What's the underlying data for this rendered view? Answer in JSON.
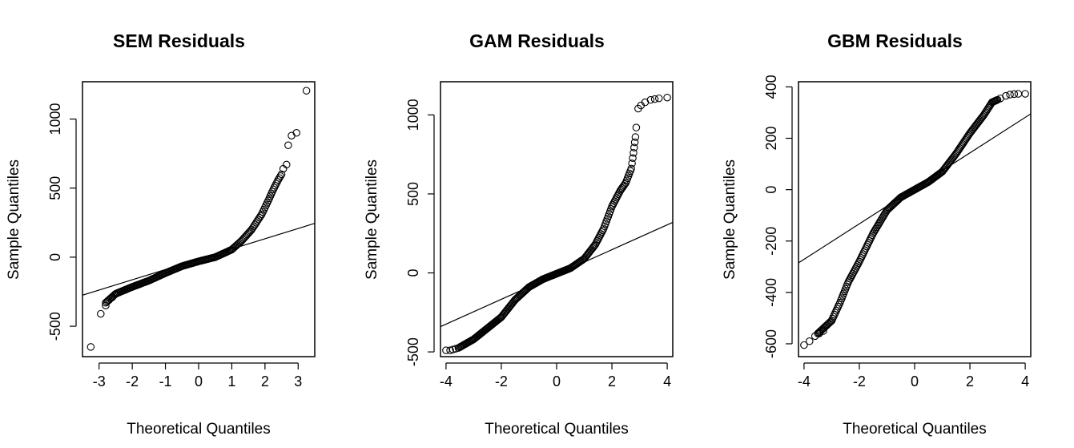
{
  "chart_data": [
    {
      "type": "scatter",
      "title": "SEM Residuals",
      "xlabel": "Theoretical Quantiles",
      "ylabel": "Sample Quantiles",
      "xlim": [
        -3.5,
        3.5
      ],
      "ylim": [
        -720,
        1270
      ],
      "xticks": [
        -3,
        -2,
        -1,
        0,
        1,
        2,
        3
      ],
      "yticks": [
        -500,
        0,
        500,
        1000
      ],
      "grid": false,
      "reference_line": [
        [
          -3.5,
          -275
        ],
        [
          3.5,
          245
        ]
      ],
      "curve": [
        [
          -2.8,
          -330
        ],
        [
          -2.5,
          -265
        ],
        [
          -2.0,
          -215
        ],
        [
          -1.5,
          -170
        ],
        [
          -1.0,
          -115
        ],
        [
          -0.5,
          -65
        ],
        [
          0.0,
          -30
        ],
        [
          0.5,
          0
        ],
        [
          1.0,
          55
        ],
        [
          1.3,
          120
        ],
        [
          1.6,
          200
        ],
        [
          1.9,
          310
        ],
        [
          2.1,
          410
        ],
        [
          2.25,
          490
        ],
        [
          2.4,
          560
        ],
        [
          2.5,
          600
        ]
      ],
      "points": [
        [
          -3.25,
          -650
        ],
        [
          -2.95,
          -410
        ],
        [
          -2.8,
          -350
        ],
        [
          -2.7,
          -310
        ],
        [
          -2.6,
          -290
        ],
        [
          -2.52,
          -270
        ],
        [
          2.55,
          640
        ],
        [
          2.65,
          670
        ],
        [
          2.7,
          810
        ],
        [
          2.8,
          880
        ],
        [
          2.95,
          900
        ],
        [
          3.25,
          1205
        ]
      ]
    },
    {
      "type": "scatter",
      "title": "GAM Residuals",
      "xlabel": "Theoretical Quantiles",
      "ylabel": "Sample Quantiles",
      "xlim": [
        -4.2,
        4.2
      ],
      "ylim": [
        -530,
        1210
      ],
      "xticks": [
        -4,
        -2,
        0,
        2,
        4
      ],
      "yticks": [
        -500,
        0,
        500,
        1000
      ],
      "grid": false,
      "reference_line": [
        [
          -4.2,
          -340
        ],
        [
          4.2,
          320
        ]
      ],
      "curve": [
        [
          -3.5,
          -470
        ],
        [
          -3.0,
          -420
        ],
        [
          -2.5,
          -350
        ],
        [
          -2.0,
          -280
        ],
        [
          -1.5,
          -170
        ],
        [
          -1.0,
          -90
        ],
        [
          -0.5,
          -40
        ],
        [
          0.0,
          -5
        ],
        [
          0.5,
          30
        ],
        [
          1.0,
          90
        ],
        [
          1.4,
          180
        ],
        [
          1.7,
          280
        ],
        [
          2.0,
          420
        ],
        [
          2.3,
          520
        ],
        [
          2.5,
          570
        ],
        [
          2.7,
          660
        ],
        [
          2.78,
          760
        ],
        [
          2.85,
          860
        ]
      ],
      "points": [
        [
          -4.0,
          -490
        ],
        [
          -3.85,
          -490
        ],
        [
          -3.75,
          -485
        ],
        [
          -3.65,
          -480
        ],
        [
          -3.55,
          -475
        ],
        [
          2.88,
          920
        ],
        [
          2.95,
          1040
        ],
        [
          3.05,
          1060
        ],
        [
          3.2,
          1080
        ],
        [
          3.4,
          1095
        ],
        [
          3.55,
          1100
        ],
        [
          3.7,
          1105
        ],
        [
          4.0,
          1110
        ]
      ]
    },
    {
      "type": "scatter",
      "title": "GBM Residuals",
      "xlabel": "Theoretical Quantiles",
      "ylabel": "Sample Quantiles",
      "xlim": [
        -4.2,
        4.2
      ],
      "ylim": [
        -650,
        420
      ],
      "xticks": [
        -4,
        -2,
        0,
        2,
        4
      ],
      "yticks": [
        -600,
        -400,
        -200,
        0,
        200,
        400
      ],
      "grid": false,
      "reference_line": [
        [
          -4.2,
          -285
        ],
        [
          4.2,
          295
        ]
      ],
      "curve": [
        [
          -3.5,
          -560
        ],
        [
          -3.0,
          -510
        ],
        [
          -2.7,
          -440
        ],
        [
          -2.4,
          -360
        ],
        [
          -2.0,
          -280
        ],
        [
          -1.5,
          -170
        ],
        [
          -1.0,
          -80
        ],
        [
          -0.5,
          -30
        ],
        [
          0.0,
          0
        ],
        [
          0.5,
          30
        ],
        [
          1.0,
          70
        ],
        [
          1.5,
          140
        ],
        [
          2.0,
          220
        ],
        [
          2.5,
          290
        ],
        [
          2.8,
          340
        ],
        [
          3.0,
          350
        ]
      ],
      "points": [
        [
          -4.0,
          -605
        ],
        [
          -3.8,
          -590
        ],
        [
          -3.6,
          -570
        ],
        [
          -3.45,
          -560
        ],
        [
          -3.3,
          -550
        ],
        [
          3.1,
          355
        ],
        [
          3.3,
          365
        ],
        [
          3.45,
          370
        ],
        [
          3.6,
          372
        ],
        [
          3.75,
          373
        ],
        [
          4.0,
          373
        ]
      ]
    }
  ]
}
